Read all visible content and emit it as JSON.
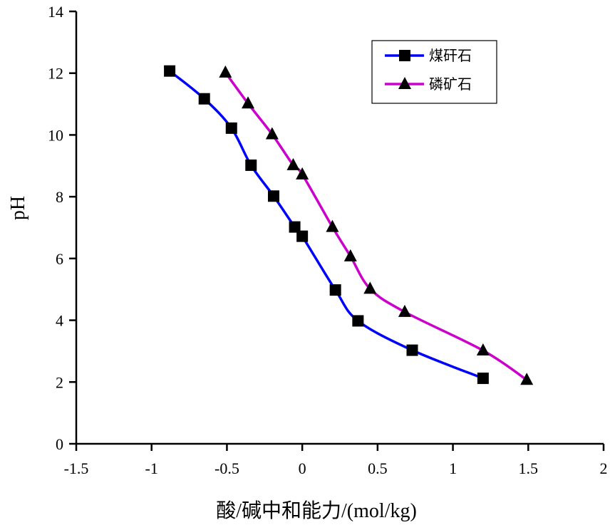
{
  "chart_data": {
    "type": "line",
    "title": "",
    "xlabel": "酸/碱中和能力/(mol/kg)",
    "ylabel": "pH",
    "xlim": [
      -1.5,
      2
    ],
    "ylim": [
      0,
      14
    ],
    "xticks": [
      -1.5,
      -1,
      -0.5,
      0,
      0.5,
      1,
      1.5,
      2
    ],
    "xtick_labels": [
      "-1.5",
      "-1",
      "-0.5",
      "0",
      "0.5",
      "1",
      "1.5",
      "2"
    ],
    "yticks": [
      0,
      2,
      4,
      6,
      8,
      10,
      12,
      14
    ],
    "ytick_labels": [
      "0",
      "2",
      "4",
      "6",
      "8",
      "10",
      "12",
      "14"
    ],
    "grid": false,
    "legend_position": "top-right",
    "series": [
      {
        "name": "煤矸石",
        "color": "#0000ff",
        "marker": "square",
        "points": [
          [
            -0.88,
            12.07
          ],
          [
            -0.65,
            11.17
          ],
          [
            -0.47,
            10.22
          ],
          [
            -0.34,
            9.02
          ],
          [
            -0.19,
            8.02
          ],
          [
            -0.05,
            7.02
          ],
          [
            0.0,
            6.72
          ],
          [
            0.22,
            4.98
          ],
          [
            0.37,
            3.98
          ],
          [
            0.73,
            3.03
          ],
          [
            1.2,
            2.12
          ]
        ]
      },
      {
        "name": "磷矿石",
        "color": "#cc00cc",
        "marker": "triangle",
        "points": [
          [
            -0.51,
            12.02
          ],
          [
            -0.36,
            11.02
          ],
          [
            -0.2,
            10.02
          ],
          [
            -0.06,
            9.02
          ],
          [
            0.0,
            8.72
          ],
          [
            0.2,
            7.02
          ],
          [
            0.32,
            6.07
          ],
          [
            0.45,
            5.02
          ],
          [
            0.68,
            4.27
          ],
          [
            1.2,
            3.02
          ],
          [
            1.49,
            2.07
          ]
        ]
      }
    ]
  }
}
